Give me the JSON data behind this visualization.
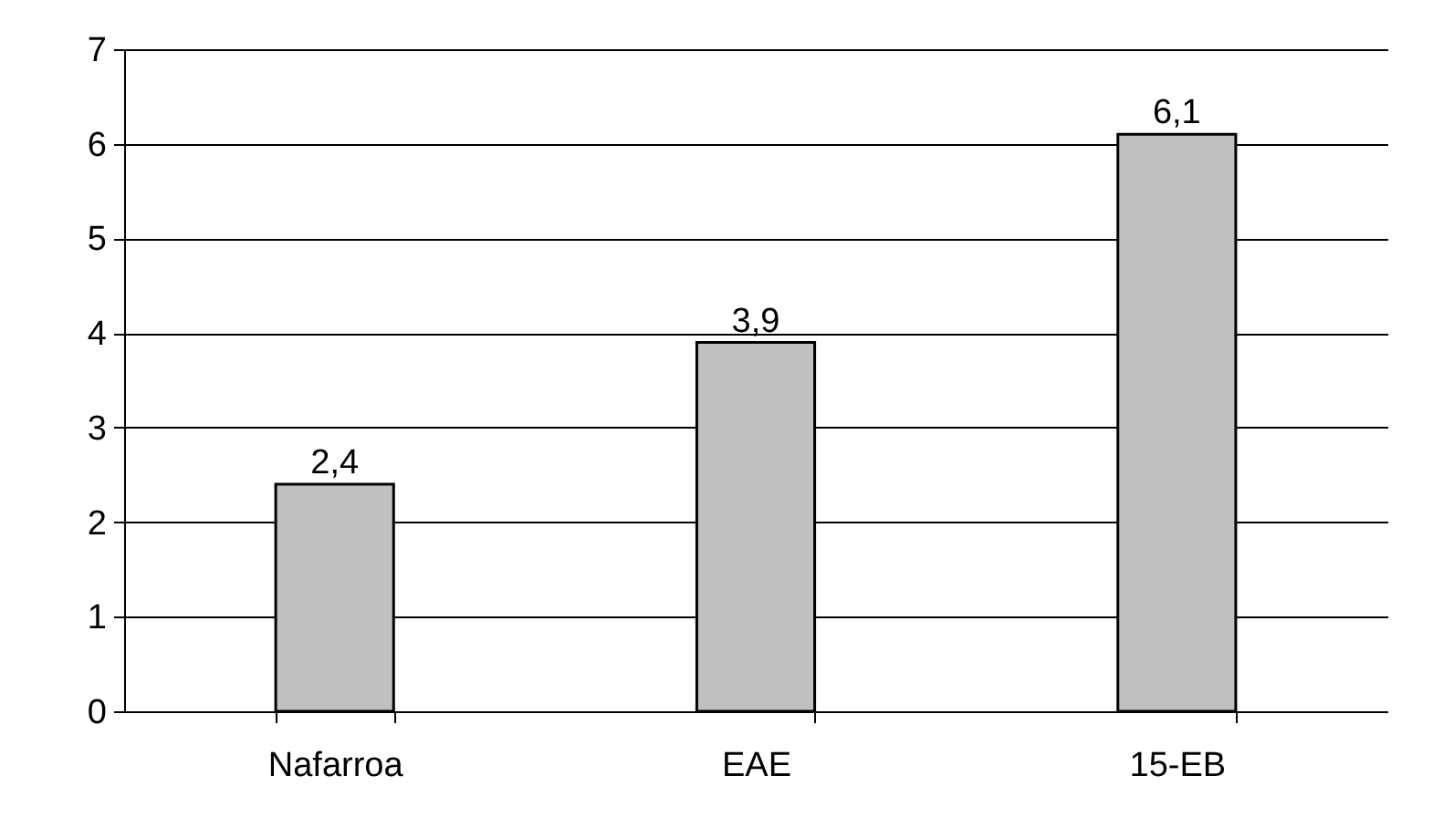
{
  "chart_data": {
    "type": "bar",
    "categories": [
      "Nafarroa",
      "EAE",
      "15-EB"
    ],
    "values": [
      2.4,
      3.9,
      6.1
    ],
    "color": "#c0c0c0",
    "value_labels": [
      "2,4",
      "3,9",
      "6,1"
    ],
    "ylim": [
      0,
      7
    ],
    "yticks": [
      0,
      1,
      2,
      3,
      4,
      5,
      6,
      7
    ],
    "grid": "y"
  }
}
